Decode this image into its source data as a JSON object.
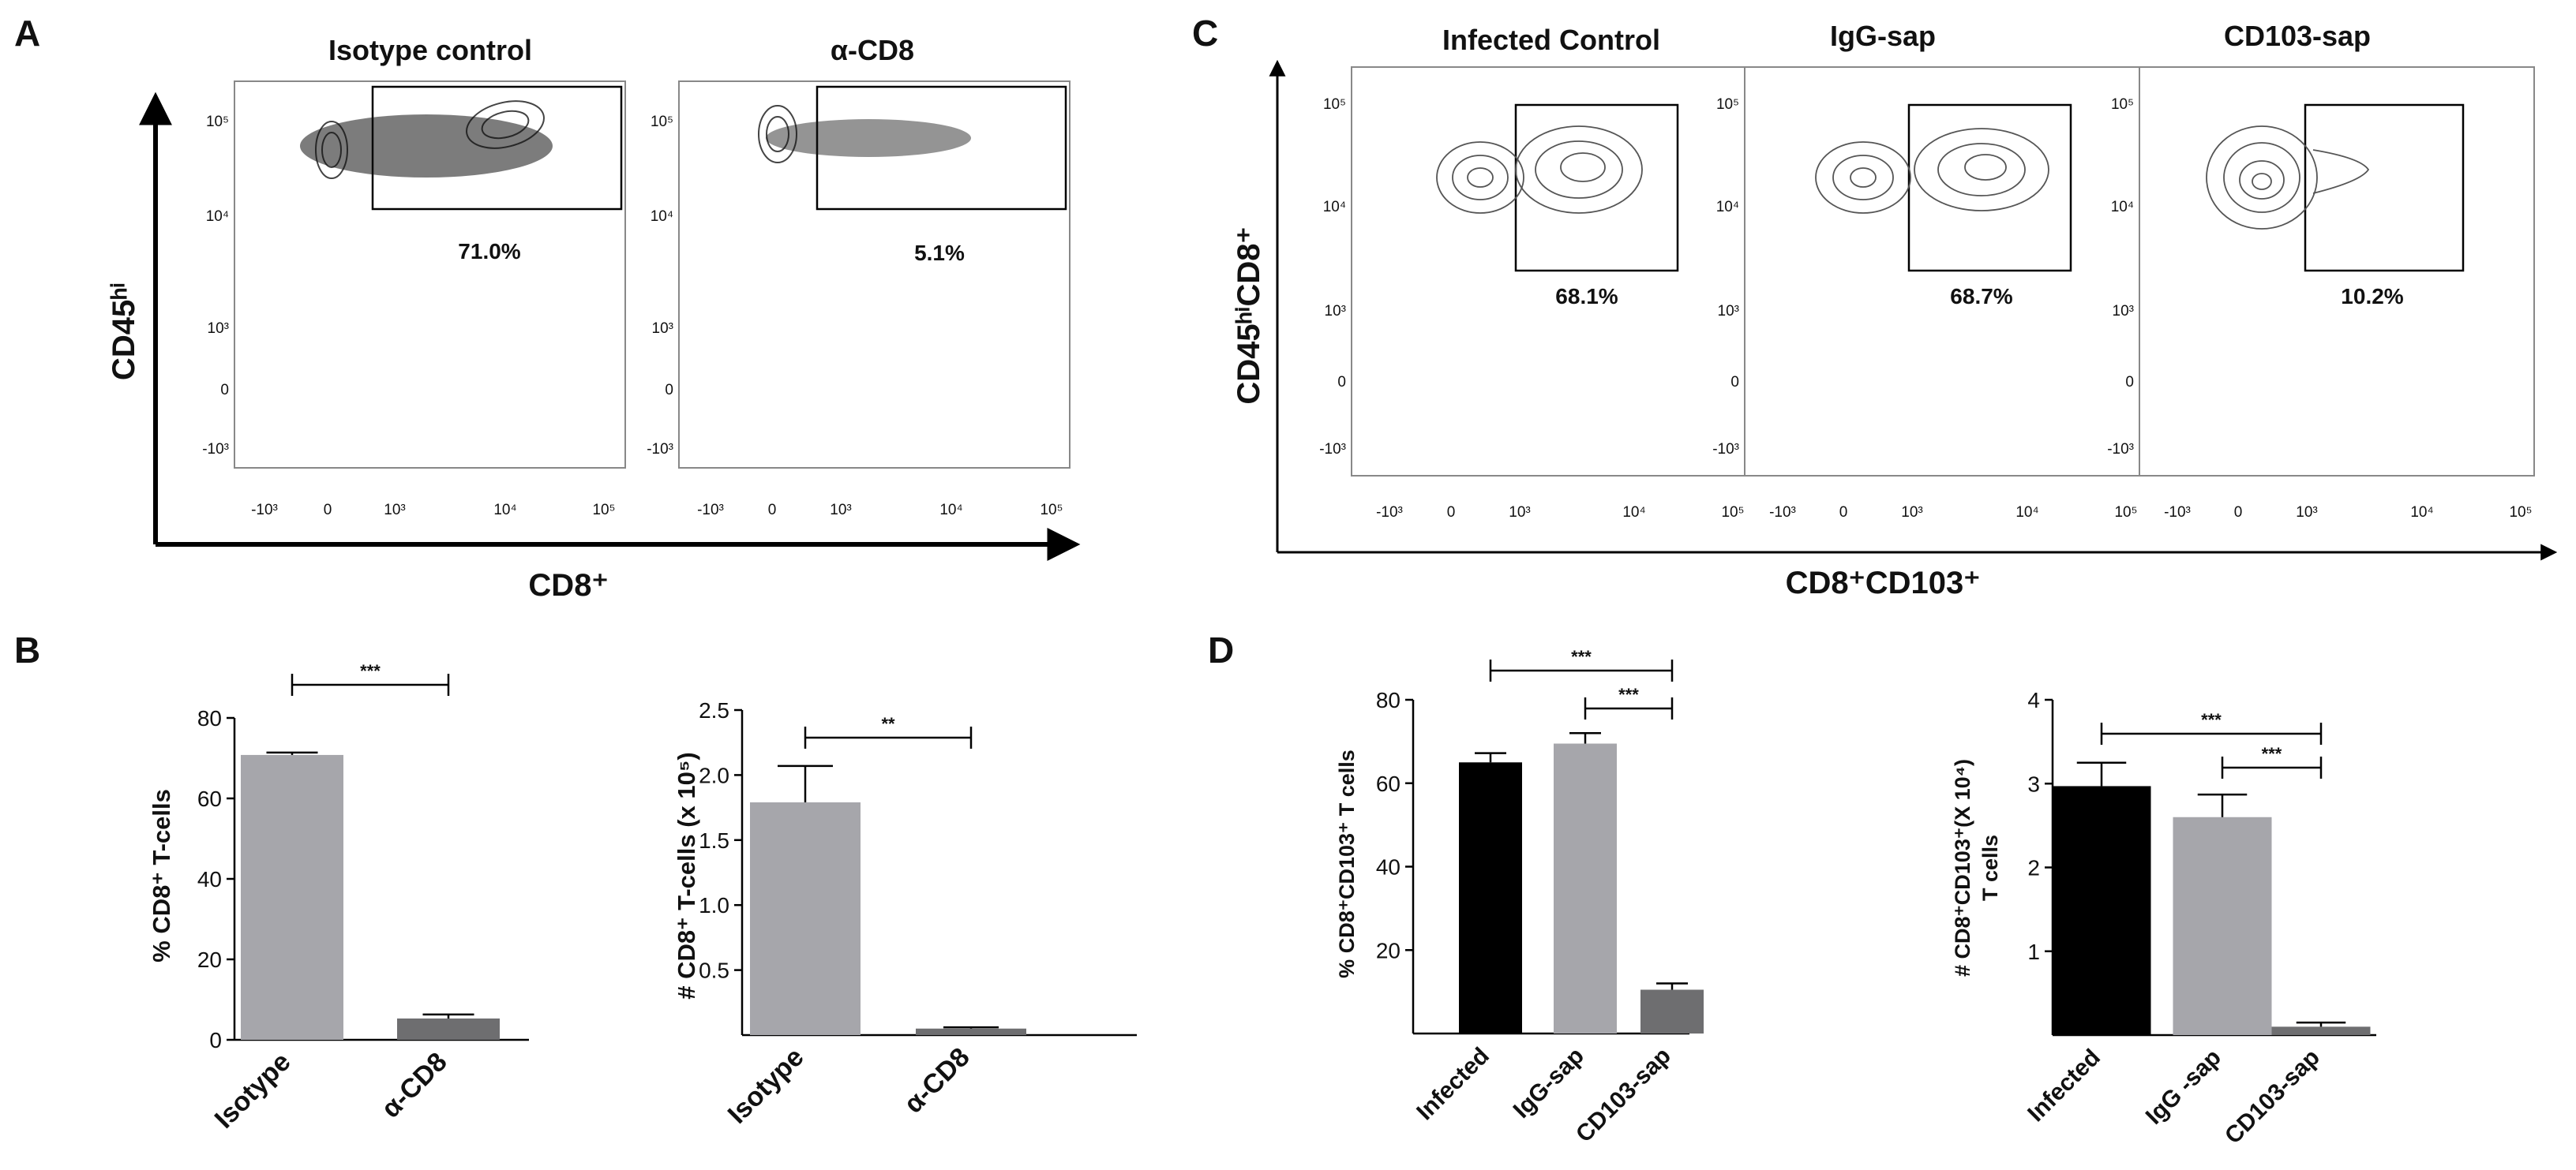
{
  "panel_labels": [
    "A",
    "B",
    "C",
    "D"
  ],
  "panel_a": {
    "titles": [
      "Isotype control",
      "α-CD8"
    ],
    "percentages": [
      "71.0%",
      "5.1%"
    ],
    "x_label": "CD8⁺",
    "y_label": "CD45ʰⁱ",
    "x_ticks": [
      "-10³",
      "0",
      "10³",
      "10⁴",
      "10⁵"
    ],
    "y_ticks": [
      "10⁵",
      "10⁴",
      "10³",
      "0",
      "-10³"
    ]
  },
  "panel_c": {
    "titles": [
      "Infected Control",
      "IgG-sap",
      "CD103-sap"
    ],
    "percentages": [
      "68.1%",
      "68.7%",
      "10.2%"
    ],
    "x_label": "CD8⁺CD103⁺",
    "y_label": "CD45ʰⁱCD8⁺",
    "x_ticks": [
      "-10³",
      "0",
      "10³",
      "10⁴",
      "10⁵"
    ],
    "y_ticks": [
      "10⁵",
      "10⁴",
      "10³",
      "0",
      "-10³"
    ]
  },
  "chart_data": [
    {
      "panel": "B",
      "type": "bar",
      "categories": [
        "Isotype",
        "α-CD8"
      ],
      "values": [
        70.8,
        5.3
      ],
      "errors": [
        0.6,
        1.0
      ],
      "colors": [
        "#a6a6ab",
        "#6e6e70"
      ],
      "ylabel": "% CD8⁺ T-cells",
      "ylim": [
        0,
        80
      ],
      "yticks": [
        "0",
        "20",
        "40",
        "60",
        "80"
      ],
      "significance": [
        {
          "label": "***",
          "between": [
            "Isotype",
            "α-CD8"
          ]
        }
      ]
    },
    {
      "panel": "B",
      "type": "bar",
      "categories": [
        "Isotype",
        "α-CD8"
      ],
      "values": [
        1.79,
        0.05
      ],
      "errors": [
        0.28,
        0.01
      ],
      "colors": [
        "#a6a6ab",
        "#6e6e70"
      ],
      "ylabel": "# CD8⁺ T-cells (x 10⁵)",
      "ylim": [
        0,
        2.5
      ],
      "yticks": [
        "0.5",
        "1.0",
        "1.5",
        "2.0",
        "2.5"
      ],
      "significance": [
        {
          "label": "**",
          "between": [
            "Isotype",
            "α-CD8"
          ]
        }
      ]
    },
    {
      "panel": "D",
      "type": "bar",
      "categories": [
        "Infected",
        "IgG-sap",
        "CD103-sap"
      ],
      "values": [
        65,
        69.5,
        10.5
      ],
      "errors": [
        2.2,
        2.5,
        1.5
      ],
      "colors": [
        "#000000",
        "#a6a6ab",
        "#6e6e70"
      ],
      "ylabel": "% CD8⁺CD103⁺ T cells",
      "ylim": [
        0,
        80
      ],
      "yticks": [
        "20",
        "40",
        "60",
        "80"
      ],
      "significance": [
        {
          "label": "***",
          "between": [
            "Infected",
            "CD103-sap"
          ]
        },
        {
          "label": "***",
          "between": [
            "IgG-sap",
            "CD103-sap"
          ]
        }
      ]
    },
    {
      "panel": "D",
      "type": "bar",
      "categories": [
        "Infected",
        "IgG -sap",
        "CD103-sap"
      ],
      "values": [
        2.97,
        2.6,
        0.1
      ],
      "errors": [
        0.28,
        0.27,
        0.05
      ],
      "colors": [
        "#000000",
        "#a6a6ab",
        "#6e6e70"
      ],
      "ylabel": "# CD8⁺CD103⁺(X 10⁴)",
      "ylabel2": "T cells",
      "ylim": [
        0,
        4
      ],
      "yticks": [
        "1",
        "2",
        "3",
        "4"
      ],
      "significance": [
        {
          "label": "***",
          "between": [
            "Infected",
            "CD103-sap"
          ]
        },
        {
          "label": "***",
          "between": [
            "IgG -sap",
            "CD103-sap"
          ]
        }
      ]
    }
  ]
}
